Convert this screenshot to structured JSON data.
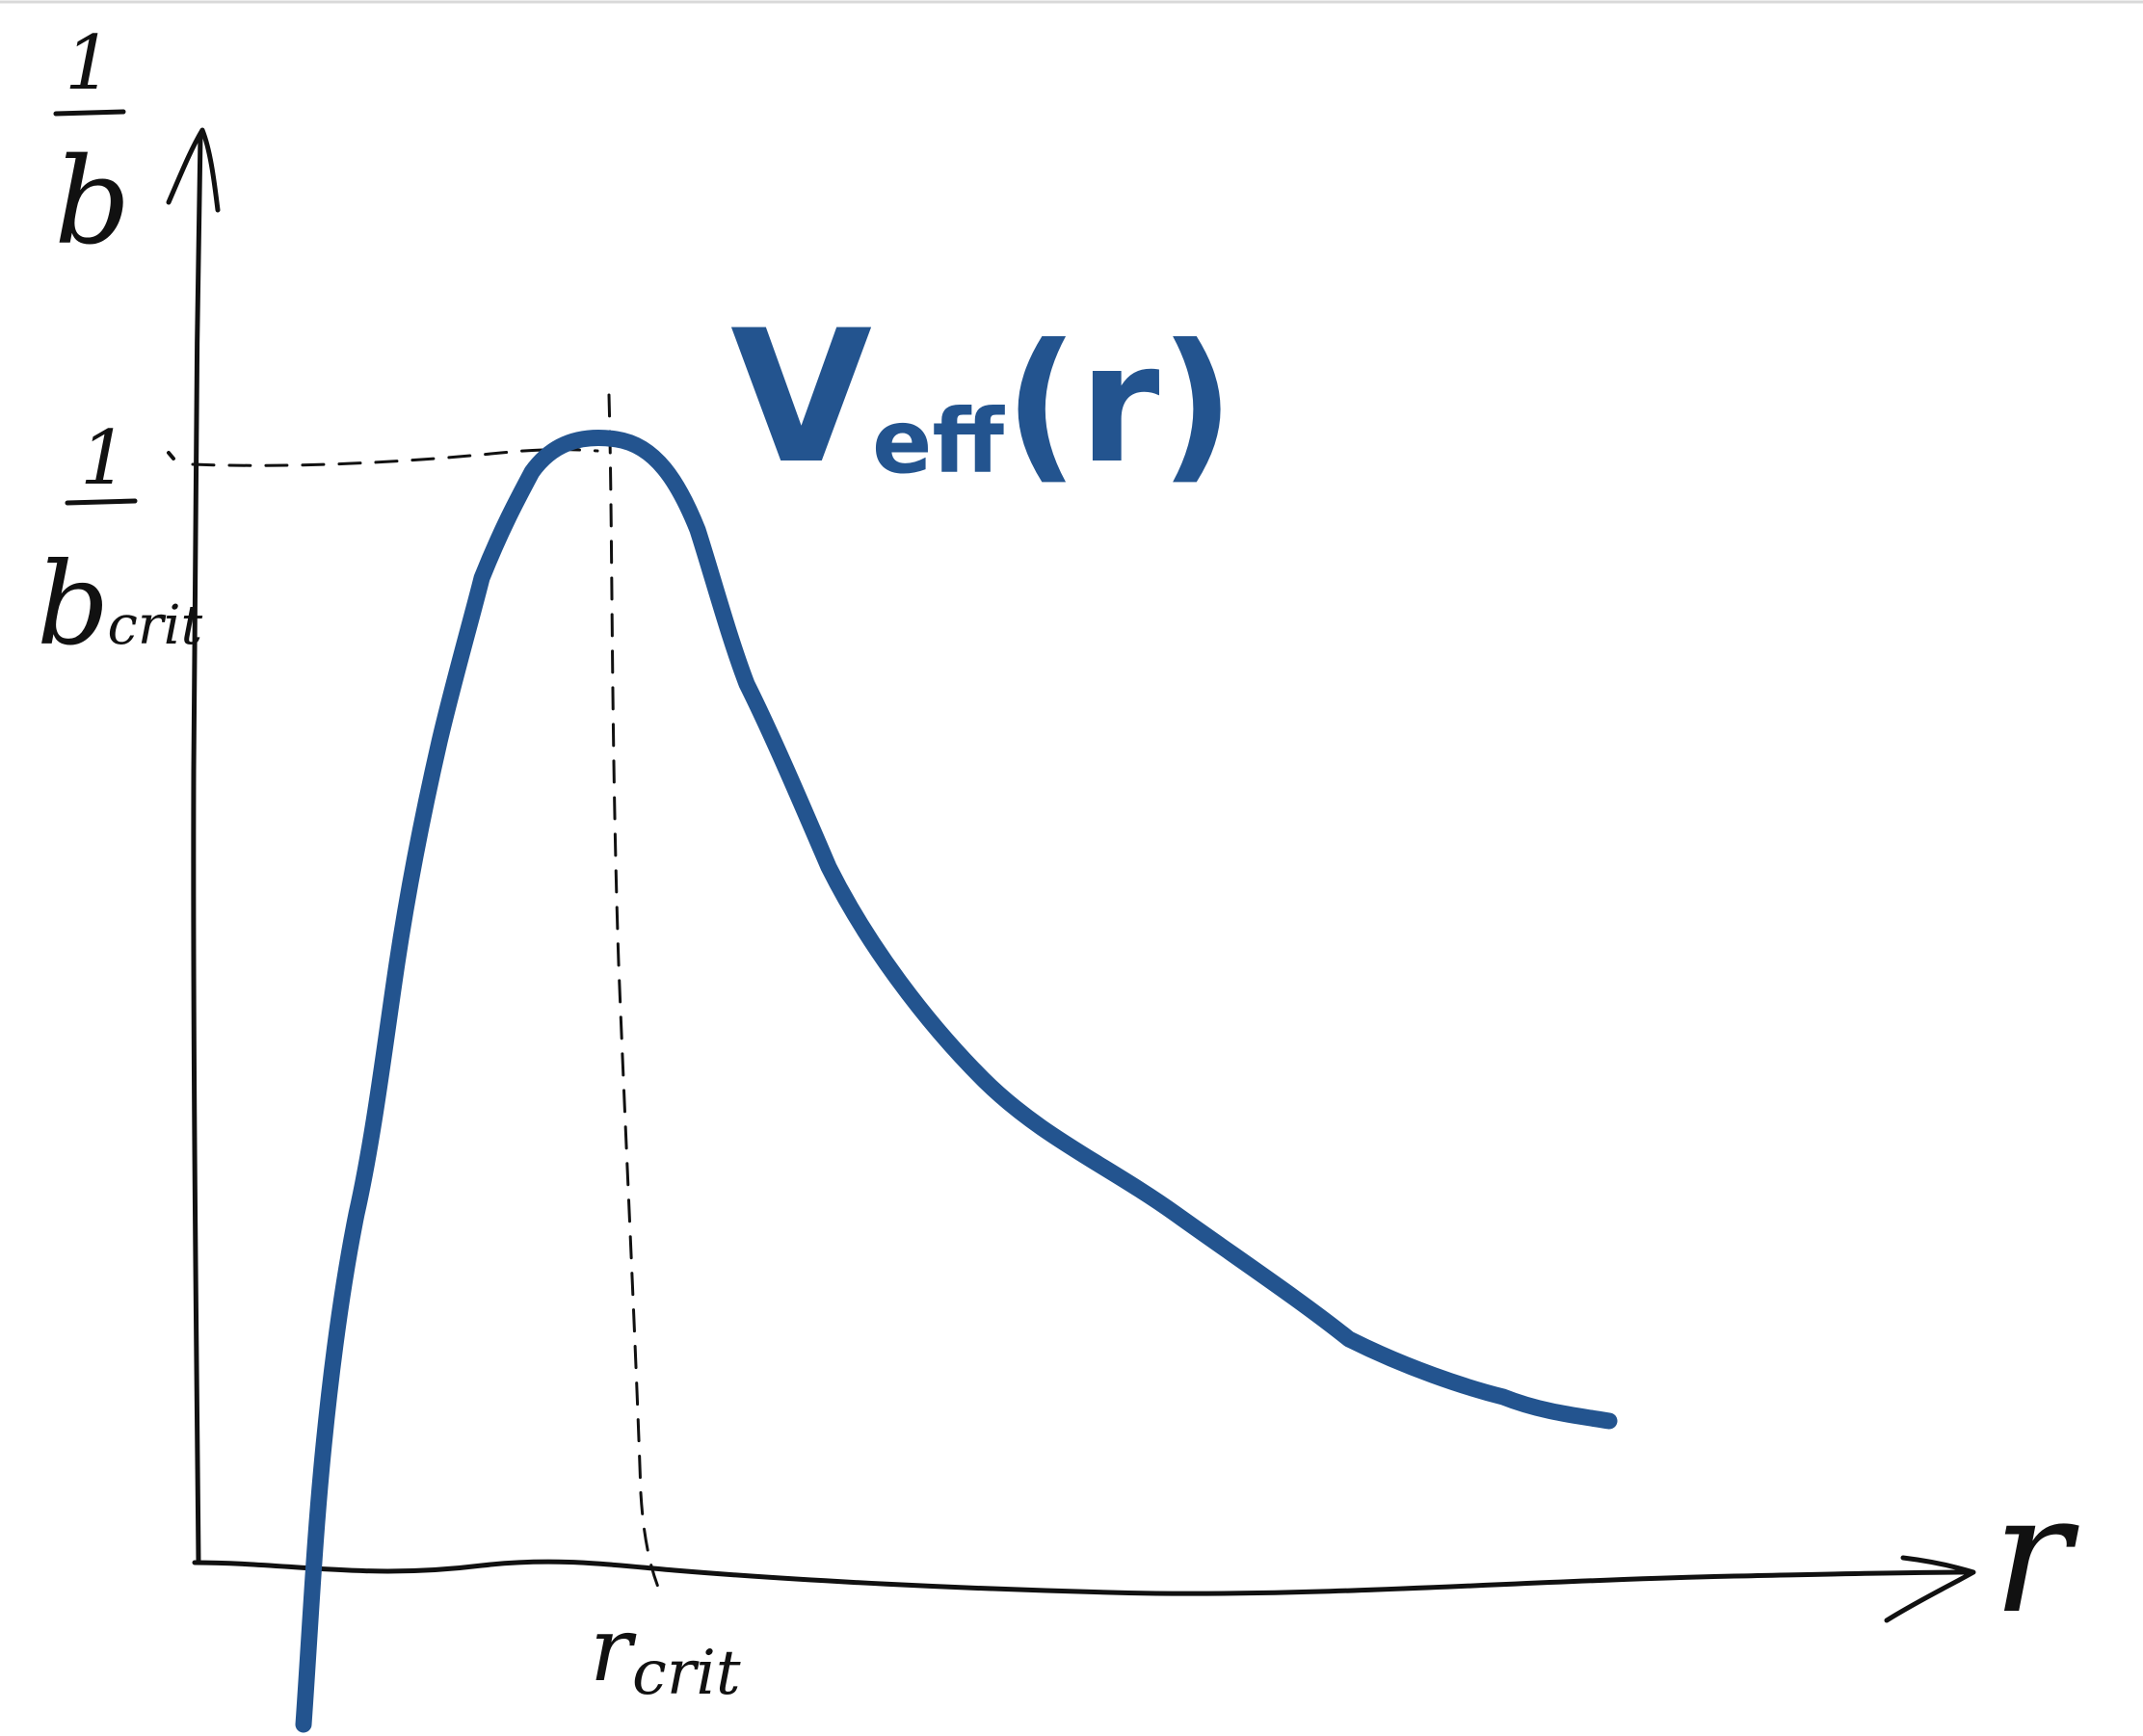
{
  "colors": {
    "curve": "#23548f",
    "ink": "#111111",
    "background": "#ffffff"
  },
  "labels": {
    "y_axis_num": "1",
    "y_axis_den": "b",
    "critical_num": "1",
    "critical_den": "b",
    "critical_den_sub": "crit",
    "curve_name": "V",
    "curve_name_sub": "eff",
    "curve_name_arg": "(r)",
    "x_axis": "r",
    "x_critical": "r",
    "x_critical_sub": "crit"
  }
}
